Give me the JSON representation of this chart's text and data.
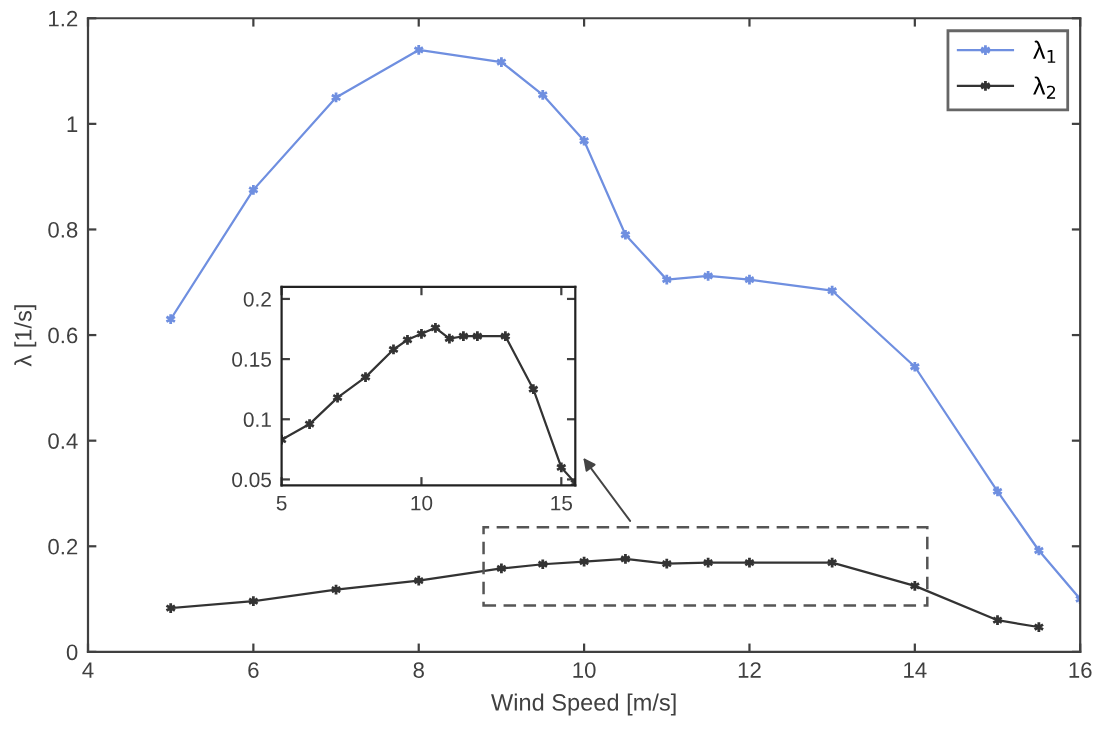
{
  "chart_data": [
    {
      "type": "line",
      "xlabel": "Wind Speed [m/s]",
      "ylabel": "λ [1/s]",
      "xlim": [
        4,
        16
      ],
      "ylim": [
        0,
        1.2
      ],
      "xticks": [
        4,
        6,
        8,
        10,
        12,
        14,
        16
      ],
      "yticks": [
        0,
        0.2,
        0.4,
        0.6,
        0.8,
        1,
        1.2
      ],
      "grid": false,
      "legend": "top right",
      "marker": "cross",
      "line_style": "solid",
      "series": [
        {
          "name": "λ$_{1}$",
          "color": "#6f8fe0",
          "x": [
            5,
            6,
            7,
            8,
            9,
            9.5,
            10,
            10.5,
            11,
            11.5,
            12,
            13,
            14,
            15,
            15.5,
            16
          ],
          "values": [
            0.63,
            0.875,
            1.05,
            1.14,
            1.117,
            1.055,
            0.968,
            0.79,
            0.705,
            0.712,
            0.705,
            0.684,
            0.54,
            0.304,
            0.192,
            0.1
          ]
        },
        {
          "name": "λ$_{2}$",
          "color": "#333333",
          "x": [
            5,
            6,
            7,
            8,
            9,
            9.5,
            10,
            10.5,
            11,
            11.5,
            12,
            13,
            14,
            15,
            15.5
          ],
          "values": [
            0.083,
            0.096,
            0.118,
            0.135,
            0.158,
            0.166,
            0.171,
            0.176,
            0.167,
            0.169,
            0.169,
            0.169,
            0.125,
            0.06,
            0.047
          ]
        }
      ]
    },
    {
      "type": "line",
      "xlim": [
        5,
        15.5
      ],
      "ylim": [
        0.045,
        0.21
      ],
      "xticks": [
        5,
        10,
        15
      ],
      "yticks": [
        0.05,
        0.1,
        0.15,
        0.2
      ],
      "grid": false,
      "marker": "cross",
      "line_style": "solid",
      "series": [
        {
          "color": "#333333",
          "x": [
            5,
            6,
            7,
            8,
            9,
            9.5,
            10,
            10.5,
            11,
            11.5,
            12,
            13,
            14,
            15,
            15.5
          ],
          "values": [
            0.083,
            0.096,
            0.118,
            0.135,
            0.158,
            0.166,
            0.171,
            0.176,
            0.167,
            0.169,
            0.169,
            0.169,
            0.125,
            0.06,
            0.047
          ]
        }
      ]
    }
  ]
}
